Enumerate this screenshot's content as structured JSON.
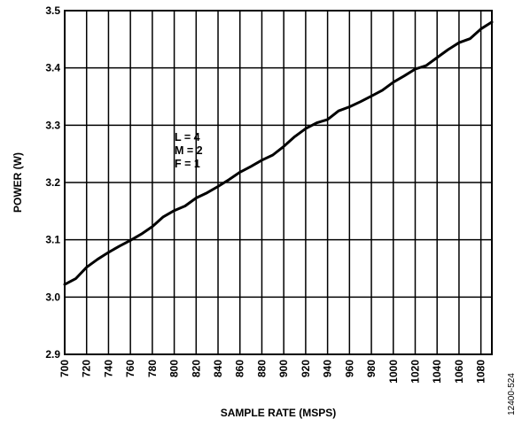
{
  "chart_data": {
    "type": "line",
    "title": "",
    "xlabel": "SAMPLE RATE (MSPS)",
    "ylabel": "POWER (W)",
    "xlim": [
      700,
      1090
    ],
    "ylim": [
      2.9,
      3.5
    ],
    "x_ticks": [
      700,
      720,
      740,
      760,
      780,
      800,
      820,
      840,
      860,
      880,
      900,
      920,
      940,
      960,
      980,
      1000,
      1020,
      1040,
      1060,
      1080
    ],
    "x_tick_labels": [
      "700",
      "720",
      "740",
      "760",
      "780",
      "800",
      "820",
      "840",
      "860",
      "880",
      "900",
      "920",
      "940",
      "960",
      "980",
      "1000",
      "1020",
      "1040",
      "1060",
      "1080"
    ],
    "y_ticks": [
      2.9,
      3.0,
      3.1,
      3.2,
      3.3,
      3.4,
      3.5
    ],
    "y_tick_labels": [
      "2.9",
      "3.0",
      "3.1",
      "3.2",
      "3.3",
      "3.4",
      "3.5"
    ],
    "grid": true,
    "annotation": [
      "L = 4",
      "M = 2",
      "F = 1"
    ],
    "figure_id": "12400-524",
    "line_color": "#000000",
    "series": [
      {
        "name": "",
        "x": [
          700,
          710,
          720,
          730,
          740,
          750,
          760,
          770,
          780,
          790,
          800,
          810,
          820,
          830,
          840,
          850,
          860,
          870,
          880,
          890,
          900,
          910,
          920,
          930,
          940,
          950,
          960,
          970,
          980,
          990,
          1000,
          1010,
          1020,
          1030,
          1040,
          1050,
          1060,
          1070,
          1080,
          1090
        ],
        "values": [
          3.022,
          3.032,
          3.052,
          3.066,
          3.078,
          3.089,
          3.099,
          3.11,
          3.123,
          3.14,
          3.151,
          3.159,
          3.173,
          3.182,
          3.193,
          3.205,
          3.218,
          3.228,
          3.239,
          3.248,
          3.263,
          3.28,
          3.294,
          3.304,
          3.31,
          3.325,
          3.332,
          3.341,
          3.351,
          3.361,
          3.375,
          3.386,
          3.398,
          3.404,
          3.418,
          3.432,
          3.444,
          3.451,
          3.468,
          3.48
        ]
      }
    ]
  }
}
